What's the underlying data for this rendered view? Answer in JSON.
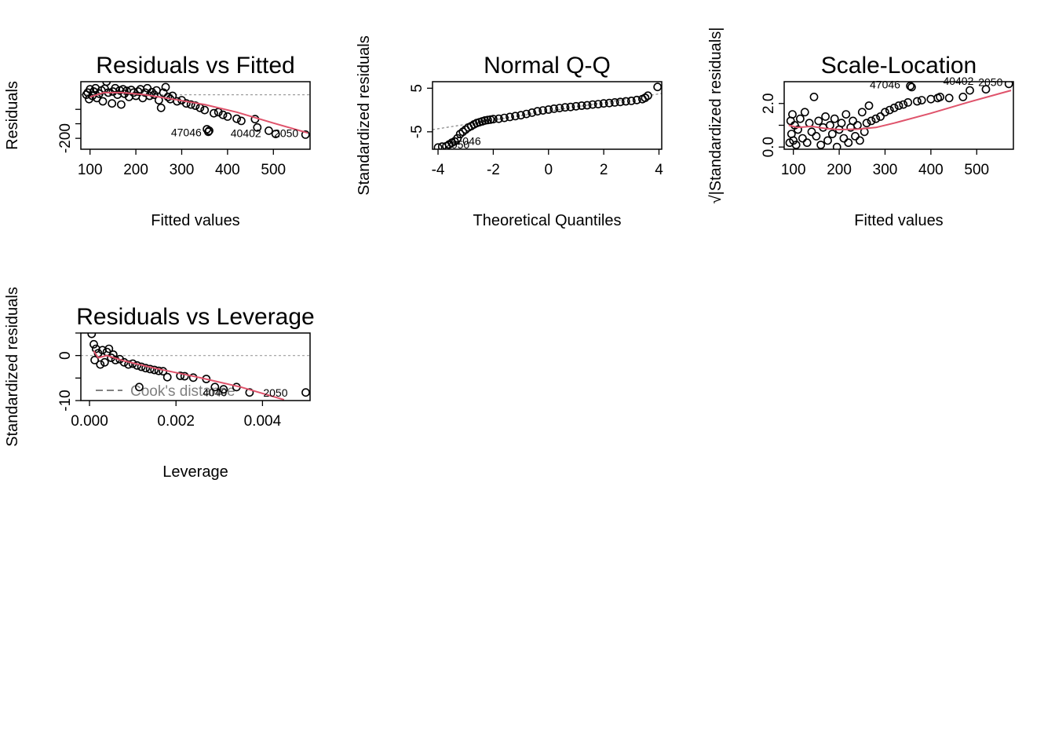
{
  "chart_data": [
    {
      "id": "rvf",
      "type": "scatter",
      "title": "Residuals vs Fitted",
      "xlabel": "Fitted values",
      "ylabel": "Residuals",
      "xlim": [
        80,
        580
      ],
      "ylim": [
        -250,
        60
      ],
      "xticks": [
        100,
        200,
        300,
        400,
        500
      ],
      "yticks": [
        -200,
        -133,
        -67
      ],
      "ytick_labels": [
        "-200",
        "",
        ""
      ],
      "reference_line": 0,
      "smooth": [
        [
          100,
          -10
        ],
        [
          130,
          10
        ],
        [
          170,
          10
        ],
        [
          220,
          0
        ],
        [
          280,
          -20
        ],
        [
          350,
          -45
        ],
        [
          420,
          -80
        ],
        [
          500,
          -130
        ],
        [
          575,
          -175
        ]
      ],
      "points": [
        [
          92,
          0
        ],
        [
          95,
          10
        ],
        [
          98,
          -20
        ],
        [
          100,
          25
        ],
        [
          105,
          -5
        ],
        [
          108,
          15
        ],
        [
          112,
          30
        ],
        [
          115,
          -15
        ],
        [
          120,
          5
        ],
        [
          125,
          20
        ],
        [
          128,
          -30
        ],
        [
          132,
          28
        ],
        [
          136,
          60
        ],
        [
          140,
          10
        ],
        [
          145,
          88
        ],
        [
          148,
          -40
        ],
        [
          150,
          15
        ],
        [
          155,
          30
        ],
        [
          160,
          0
        ],
        [
          165,
          20
        ],
        [
          168,
          -45
        ],
        [
          172,
          25
        ],
        [
          175,
          5
        ],
        [
          180,
          18
        ],
        [
          185,
          -10
        ],
        [
          190,
          22
        ],
        [
          195,
          10
        ],
        [
          200,
          -5
        ],
        [
          205,
          15
        ],
        [
          210,
          25
        ],
        [
          215,
          -15
        ],
        [
          220,
          10
        ],
        [
          225,
          30
        ],
        [
          230,
          -5
        ],
        [
          235,
          12
        ],
        [
          240,
          0
        ],
        [
          245,
          20
        ],
        [
          250,
          -25
        ],
        [
          255,
          -60
        ],
        [
          260,
          10
        ],
        [
          265,
          35
        ],
        [
          270,
          -10
        ],
        [
          275,
          -20
        ],
        [
          280,
          -5
        ],
        [
          290,
          -30
        ],
        [
          300,
          -25
        ],
        [
          310,
          -40
        ],
        [
          320,
          -45
        ],
        [
          330,
          -50
        ],
        [
          340,
          -60
        ],
        [
          350,
          -70
        ],
        [
          355,
          -158
        ],
        [
          358,
          -170
        ],
        [
          360,
          -165
        ],
        [
          370,
          -85
        ],
        [
          380,
          -80
        ],
        [
          390,
          -92
        ],
        [
          400,
          -100
        ],
        [
          420,
          -110
        ],
        [
          430,
          -120
        ],
        [
          460,
          -112
        ],
        [
          465,
          -150
        ],
        [
          490,
          -165
        ],
        [
          505,
          -180
        ],
        [
          570,
          -183
        ]
      ],
      "annotations": [
        {
          "text": "47046",
          "x": 310,
          "y": -190
        },
        {
          "text": "40402",
          "x": 440,
          "y": -195
        },
        {
          "text": "2050",
          "x": 528,
          "y": -195
        }
      ]
    },
    {
      "id": "qq",
      "type": "scatter",
      "title": "Normal Q-Q",
      "xlabel": "Theoretical Quantiles",
      "ylabel": "Standardized residuals",
      "xlim": [
        -4.2,
        4.1
      ],
      "ylim": [
        -9,
        6.5
      ],
      "xticks": [
        -4,
        -2,
        0,
        2,
        4
      ],
      "yticks": [
        -5,
        5
      ],
      "ref_line": [
        [
          -4.2,
          -4.5
        ],
        [
          4.1,
          3.8
        ]
      ],
      "points": [
        [
          -4.0,
          -8.6
        ],
        [
          -3.85,
          -8.4
        ],
        [
          -3.7,
          -8.3
        ],
        [
          -3.6,
          -7.9
        ],
        [
          -3.5,
          -7.5
        ],
        [
          -3.4,
          -7.2
        ],
        [
          -3.3,
          -6.5
        ],
        [
          -3.2,
          -5.5
        ],
        [
          -3.1,
          -5.0
        ],
        [
          -3.0,
          -4.5
        ],
        [
          -2.9,
          -4.0
        ],
        [
          -2.8,
          -3.7
        ],
        [
          -2.7,
          -3.3
        ],
        [
          -2.6,
          -3.0
        ],
        [
          -2.5,
          -2.8
        ],
        [
          -2.4,
          -2.6
        ],
        [
          -2.3,
          -2.4
        ],
        [
          -2.2,
          -2.3
        ],
        [
          -2.1,
          -2.2
        ],
        [
          -2.0,
          -2.1
        ],
        [
          -1.8,
          -2.0
        ],
        [
          -1.6,
          -1.8
        ],
        [
          -1.4,
          -1.6
        ],
        [
          -1.2,
          -1.4
        ],
        [
          -1.0,
          -1.2
        ],
        [
          -0.8,
          -0.9
        ],
        [
          -0.6,
          -0.6
        ],
        [
          -0.4,
          -0.3
        ],
        [
          -0.2,
          -0.1
        ],
        [
          0,
          0.1
        ],
        [
          0.2,
          0.3
        ],
        [
          0.4,
          0.45
        ],
        [
          0.6,
          0.6
        ],
        [
          0.8,
          0.7
        ],
        [
          1.0,
          0.85
        ],
        [
          1.2,
          1.0
        ],
        [
          1.4,
          1.1
        ],
        [
          1.6,
          1.25
        ],
        [
          1.8,
          1.35
        ],
        [
          2.0,
          1.5
        ],
        [
          2.2,
          1.6
        ],
        [
          2.4,
          1.75
        ],
        [
          2.6,
          1.85
        ],
        [
          2.8,
          2.0
        ],
        [
          3.0,
          2.1
        ],
        [
          3.2,
          2.3
        ],
        [
          3.4,
          2.5
        ],
        [
          3.5,
          2.8
        ],
        [
          3.6,
          3.3
        ],
        [
          3.95,
          5.3
        ]
      ],
      "annotations": [
        {
          "text": "47046",
          "x": -3.0,
          "y": -8.0
        },
        {
          "text": "2050",
          "x": -3.3,
          "y": -8.8
        }
      ]
    },
    {
      "id": "sl",
      "type": "scatter",
      "title": "Scale-Location",
      "xlabel": "Fitted values",
      "ylabel": "√|Standardized residuals|",
      "xlim": [
        80,
        580
      ],
      "ylim": [
        -0.1,
        3.0
      ],
      "xticks": [
        100,
        200,
        300,
        400,
        500
      ],
      "yticks": [
        0.0,
        1.0,
        2.0
      ],
      "ytick_labels": [
        "0.0",
        "",
        "2.0"
      ],
      "smooth": [
        [
          90,
          1.0
        ],
        [
          110,
          0.9
        ],
        [
          140,
          0.95
        ],
        [
          170,
          0.85
        ],
        [
          200,
          0.8
        ],
        [
          240,
          0.82
        ],
        [
          280,
          0.9
        ],
        [
          320,
          1.1
        ],
        [
          400,
          1.55
        ],
        [
          480,
          2.05
        ],
        [
          575,
          2.6
        ]
      ],
      "points": [
        [
          92,
          0.2
        ],
        [
          94,
          1.2
        ],
        [
          96,
          0.6
        ],
        [
          98,
          1.5
        ],
        [
          100,
          0.3
        ],
        [
          103,
          1.0
        ],
        [
          106,
          0.1
        ],
        [
          110,
          0.8
        ],
        [
          115,
          1.3
        ],
        [
          120,
          0.4
        ],
        [
          125,
          1.6
        ],
        [
          130,
          0.2
        ],
        [
          135,
          1.1
        ],
        [
          140,
          0.7
        ],
        [
          145,
          2.3
        ],
        [
          150,
          0.5
        ],
        [
          155,
          1.2
        ],
        [
          160,
          0.1
        ],
        [
          165,
          0.9
        ],
        [
          170,
          1.4
        ],
        [
          175,
          0.3
        ],
        [
          180,
          1.0
        ],
        [
          185,
          0.6
        ],
        [
          190,
          1.3
        ],
        [
          195,
          0.0
        ],
        [
          200,
          0.8
        ],
        [
          205,
          1.1
        ],
        [
          210,
          0.4
        ],
        [
          215,
          1.5
        ],
        [
          220,
          0.2
        ],
        [
          225,
          0.9
        ],
        [
          230,
          1.2
        ],
        [
          235,
          0.5
        ],
        [
          240,
          1.0
        ],
        [
          245,
          0.3
        ],
        [
          250,
          1.6
        ],
        [
          255,
          0.7
        ],
        [
          260,
          1.1
        ],
        [
          265,
          1.9
        ],
        [
          270,
          1.2
        ],
        [
          280,
          1.3
        ],
        [
          290,
          1.4
        ],
        [
          300,
          1.6
        ],
        [
          310,
          1.7
        ],
        [
          320,
          1.8
        ],
        [
          330,
          1.9
        ],
        [
          340,
          1.95
        ],
        [
          350,
          2.05
        ],
        [
          355,
          2.8
        ],
        [
          358,
          2.75
        ],
        [
          370,
          2.1
        ],
        [
          380,
          2.15
        ],
        [
          400,
          2.2
        ],
        [
          415,
          2.25
        ],
        [
          420,
          2.3
        ],
        [
          440,
          2.25
        ],
        [
          470,
          2.3
        ],
        [
          485,
          2.6
        ],
        [
          520,
          2.65
        ],
        [
          570,
          2.9
        ]
      ],
      "annotations": [
        {
          "text": "47046",
          "x": 300,
          "y": 2.7
        },
        {
          "text": "40402",
          "x": 460,
          "y": 2.85
        },
        {
          "text": "2050",
          "x": 530,
          "y": 2.8
        }
      ]
    },
    {
      "id": "rvl",
      "type": "scatter",
      "title": "Residuals vs Leverage",
      "xlabel": "Leverage",
      "ylabel": "Standardized residuals",
      "xlim": [
        -0.0002,
        0.0051
      ],
      "ylim": [
        -10,
        5
      ],
      "xticks": [
        0.0,
        0.002,
        0.004
      ],
      "xtick_labels": [
        "0.000",
        "0.002",
        "0.004"
      ],
      "yticks": [
        -10,
        -5,
        0,
        5
      ],
      "ytick_labels": [
        "-10",
        "",
        "0",
        ""
      ],
      "reference_line": 0,
      "smooth": [
        [
          0.0001,
          1.0
        ],
        [
          0.0002,
          -0.5
        ],
        [
          0.0004,
          0.0
        ],
        [
          0.0008,
          -1.2
        ],
        [
          0.0015,
          -2.8
        ],
        [
          0.0025,
          -4.8
        ],
        [
          0.0035,
          -7.0
        ],
        [
          0.0045,
          -9.8
        ]
      ],
      "points": [
        [
          5e-05,
          4.8
        ],
        [
          0.0001,
          2.5
        ],
        [
          0.00012,
          -1.0
        ],
        [
          0.00015,
          1.5
        ],
        [
          0.0002,
          0.5
        ],
        [
          0.00025,
          -2.0
        ],
        [
          0.0003,
          1.2
        ],
        [
          0.00035,
          -1.5
        ],
        [
          0.0004,
          0.8
        ],
        [
          0.00045,
          1.5
        ],
        [
          0.0005,
          -0.5
        ],
        [
          0.00055,
          0.2
        ],
        [
          0.0006,
          -1.0
        ],
        [
          0.0007,
          -0.8
        ],
        [
          0.0008,
          -1.5
        ],
        [
          0.0009,
          -2.0
        ],
        [
          0.001,
          -1.8
        ],
        [
          0.0011,
          -2.2
        ],
        [
          0.00115,
          -7.0
        ],
        [
          0.0012,
          -2.5
        ],
        [
          0.0013,
          -2.8
        ],
        [
          0.0014,
          -3.0
        ],
        [
          0.0015,
          -3.2
        ],
        [
          0.0016,
          -3.4
        ],
        [
          0.0017,
          -3.5
        ],
        [
          0.0018,
          -4.8
        ],
        [
          0.0021,
          -4.5
        ],
        [
          0.0022,
          -4.6
        ],
        [
          0.0024,
          -4.9
        ],
        [
          0.0027,
          -5.2
        ],
        [
          0.0029,
          -7.0
        ],
        [
          0.0031,
          -7.5
        ],
        [
          0.0034,
          -7.0
        ],
        [
          0.0037,
          -8.2
        ],
        [
          0.005,
          -8.2
        ]
      ],
      "annotations": [
        {
          "text": "4040",
          "x": 0.0029,
          "y": -9.0
        },
        {
          "text": "2050",
          "x": 0.0043,
          "y": -9.1
        }
      ],
      "legend_text": "Cook's distance",
      "legend_position": "bottom-left"
    }
  ]
}
